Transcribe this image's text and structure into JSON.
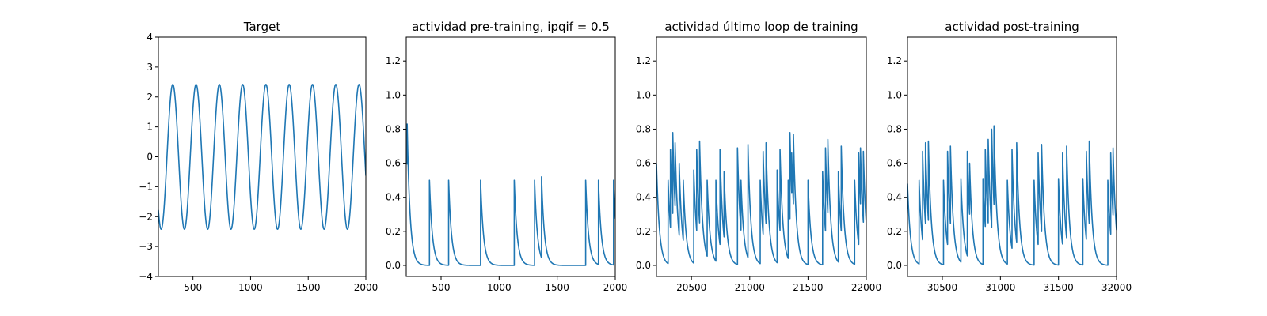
{
  "chart_data": [
    {
      "type": "line",
      "title": "Target",
      "xlabel": "",
      "ylabel": "",
      "xlim": [
        200,
        2000
      ],
      "ylim": [
        -4,
        4
      ],
      "xticks": [
        500,
        1000,
        1500,
        2000
      ],
      "yticks": [
        -4,
        -3,
        -2,
        -1,
        0,
        1,
        2,
        3,
        4
      ],
      "grid": false,
      "series": [
        {
          "color": "#1f77b4",
          "kind": "sine",
          "amplitude": 2.42,
          "period": 202,
          "peak_x": [
            325,
            527,
            729,
            931,
            1133,
            1335,
            1537,
            1739,
            1941
          ],
          "trough_x": [
            226,
            428,
            630,
            832,
            1034,
            1236,
            1438,
            1640,
            1842
          ],
          "x_range": [
            200,
            2000
          ],
          "y_at_end": -0.9
        }
      ]
    },
    {
      "type": "line",
      "title": "actividad pre-training, ipqif = 0.5",
      "xlabel": "",
      "ylabel": "",
      "xlim": [
        200,
        2000
      ],
      "ylim": [
        -0.065,
        1.34
      ],
      "xticks": [
        500,
        1000,
        1500,
        2000
      ],
      "yticks": [
        0.0,
        0.2,
        0.4,
        0.6,
        0.8,
        1.0,
        1.2
      ],
      "grid": false,
      "series": [
        {
          "color": "#1f77b4",
          "kind": "decaying_spikes",
          "start_value": 0.82,
          "tau": 25,
          "baseline": 0.0,
          "spikes": [
            {
              "x": 208,
              "peak": 0.83
            },
            {
              "x": 400,
              "peak": 0.5
            },
            {
              "x": 565,
              "peak": 0.5
            },
            {
              "x": 840,
              "peak": 0.5
            },
            {
              "x": 1130,
              "peak": 0.5
            },
            {
              "x": 1305,
              "peak": 0.5
            },
            {
              "x": 1365,
              "peak": 0.52
            },
            {
              "x": 1745,
              "peak": 0.5
            },
            {
              "x": 1855,
              "peak": 0.5
            },
            {
              "x": 1985,
              "peak": 0.5
            }
          ]
        }
      ]
    },
    {
      "type": "line",
      "title": "actividad último loop de training",
      "xlabel": "",
      "ylabel": "",
      "xlim": [
        20200,
        22000
      ],
      "ylim": [
        -0.065,
        1.34
      ],
      "xticks": [
        20500,
        21000,
        21500,
        22000
      ],
      "yticks": [
        0.0,
        0.2,
        0.4,
        0.6,
        0.8,
        1.0,
        1.2
      ],
      "grid": false,
      "series": [
        {
          "color": "#1f77b4",
          "kind": "decaying_spikes",
          "start_value": 0.6,
          "tau": 25,
          "baseline": 0.0,
          "spikes": [
            {
              "x": 20300,
              "peak": 0.5
            },
            {
              "x": 20320,
              "peak": 0.68
            },
            {
              "x": 20340,
              "peak": 0.78
            },
            {
              "x": 20360,
              "peak": 0.72
            },
            {
              "x": 20395,
              "peak": 0.6
            },
            {
              "x": 20430,
              "peak": 0.5
            },
            {
              "x": 20520,
              "peak": 0.56
            },
            {
              "x": 20545,
              "peak": 0.68
            },
            {
              "x": 20570,
              "peak": 0.73
            },
            {
              "x": 20635,
              "peak": 0.5
            },
            {
              "x": 20710,
              "peak": 0.5
            },
            {
              "x": 20745,
              "peak": 0.68
            },
            {
              "x": 20780,
              "peak": 0.55
            },
            {
              "x": 20895,
              "peak": 0.69
            },
            {
              "x": 20925,
              "peak": 0.5
            },
            {
              "x": 20985,
              "peak": 0.71
            },
            {
              "x": 21090,
              "peak": 0.5
            },
            {
              "x": 21115,
              "peak": 0.67
            },
            {
              "x": 21140,
              "peak": 0.72
            },
            {
              "x": 21235,
              "peak": 0.56
            },
            {
              "x": 21260,
              "peak": 0.68
            },
            {
              "x": 21330,
              "peak": 0.5
            },
            {
              "x": 21345,
              "peak": 0.78
            },
            {
              "x": 21360,
              "peak": 0.66
            },
            {
              "x": 21375,
              "peak": 0.77
            },
            {
              "x": 21500,
              "peak": 0.5
            },
            {
              "x": 21625,
              "peak": 0.55
            },
            {
              "x": 21650,
              "peak": 0.69
            },
            {
              "x": 21670,
              "peak": 0.74
            },
            {
              "x": 21760,
              "peak": 0.55
            },
            {
              "x": 21785,
              "peak": 0.7
            },
            {
              "x": 21900,
              "peak": 0.5
            },
            {
              "x": 21935,
              "peak": 0.66
            },
            {
              "x": 21950,
              "peak": 0.69
            },
            {
              "x": 21975,
              "peak": 0.67
            }
          ]
        }
      ]
    },
    {
      "type": "line",
      "title": "actividad post-training",
      "xlabel": "",
      "ylabel": "",
      "xlim": [
        30200,
        32000
      ],
      "ylim": [
        -0.065,
        1.34
      ],
      "xticks": [
        30500,
        31000,
        31500,
        32000
      ],
      "yticks": [
        0.0,
        0.2,
        0.4,
        0.6,
        0.8,
        1.0,
        1.2
      ],
      "grid": false,
      "series": [
        {
          "color": "#1f77b4",
          "kind": "decaying_spikes",
          "start_value": 0.48,
          "tau": 25,
          "baseline": 0.0,
          "spikes": [
            {
              "x": 30300,
              "peak": 0.5
            },
            {
              "x": 30330,
              "peak": 0.67
            },
            {
              "x": 30355,
              "peak": 0.72
            },
            {
              "x": 30380,
              "peak": 0.73
            },
            {
              "x": 30510,
              "peak": 0.5
            },
            {
              "x": 30545,
              "peak": 0.67
            },
            {
              "x": 30570,
              "peak": 0.7
            },
            {
              "x": 30660,
              "peak": 0.51
            },
            {
              "x": 30715,
              "peak": 0.67
            },
            {
              "x": 30735,
              "peak": 0.6
            },
            {
              "x": 30850,
              "peak": 0.51
            },
            {
              "x": 30870,
              "peak": 0.68
            },
            {
              "x": 30895,
              "peak": 0.74
            },
            {
              "x": 30925,
              "peak": 0.8
            },
            {
              "x": 30945,
              "peak": 0.82
            },
            {
              "x": 31060,
              "peak": 0.5
            },
            {
              "x": 31100,
              "peak": 0.68
            },
            {
              "x": 31140,
              "peak": 0.72
            },
            {
              "x": 31290,
              "peak": 0.5
            },
            {
              "x": 31325,
              "peak": 0.66
            },
            {
              "x": 31355,
              "peak": 0.71
            },
            {
              "x": 31500,
              "peak": 0.51
            },
            {
              "x": 31535,
              "peak": 0.66
            },
            {
              "x": 31570,
              "peak": 0.7
            },
            {
              "x": 31710,
              "peak": 0.51
            },
            {
              "x": 31740,
              "peak": 0.67
            },
            {
              "x": 31765,
              "peak": 0.73
            },
            {
              "x": 31925,
              "peak": 0.5
            },
            {
              "x": 31950,
              "peak": 0.66
            },
            {
              "x": 31970,
              "peak": 0.69
            }
          ]
        }
      ]
    }
  ]
}
